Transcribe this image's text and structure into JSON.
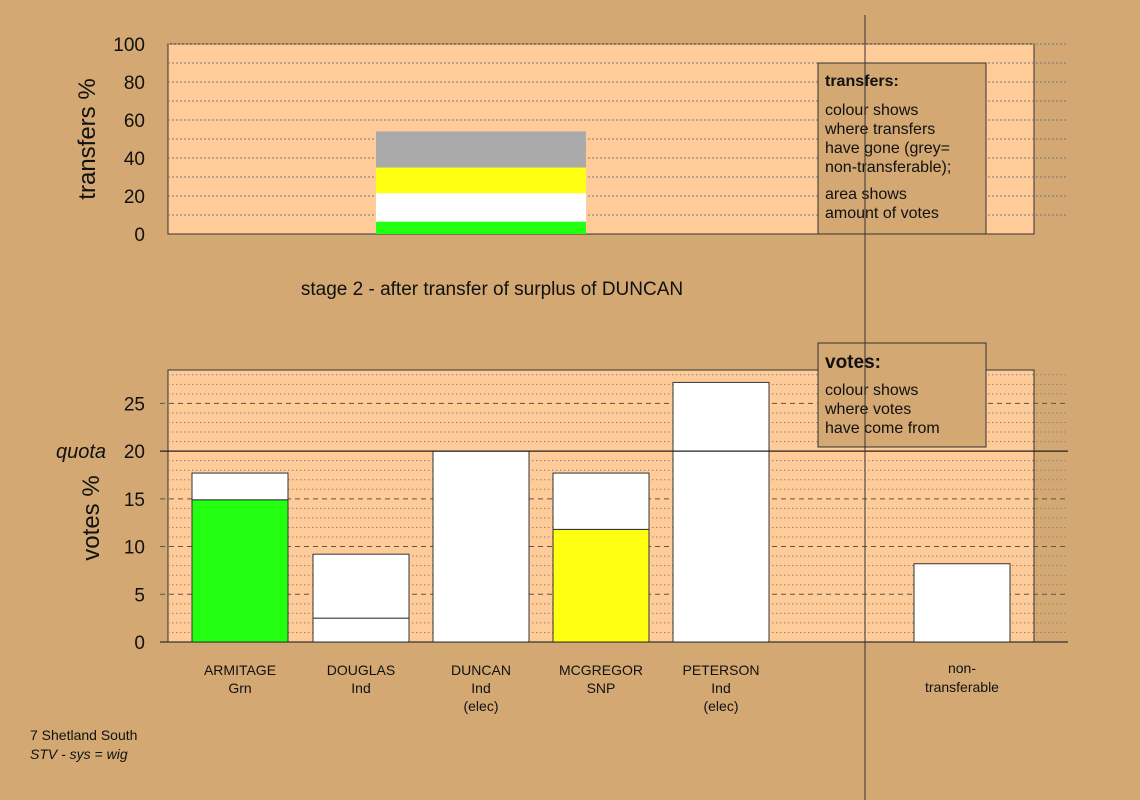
{
  "stage_caption": "stage 2 - after transfer of surplus of DUNCAN",
  "footer": {
    "constituency": "7 Shetland South",
    "system": "STV - sys = wig"
  },
  "colors": {
    "background": "#d4a872",
    "plot_area": "#ffcc99",
    "grn": "#22ff11",
    "snp": "#ffff11",
    "ind": "#ffffff",
    "non_transferable": "#aaaaaa"
  },
  "chart_data": [
    {
      "type": "bar",
      "ylabel": "transfers %",
      "ylim": [
        0,
        100
      ],
      "yticks": [
        0,
        20,
        40,
        60,
        80,
        100
      ],
      "stacked_bar": [
        {
          "party": "Grn",
          "from": 0,
          "to": 6.5,
          "color": "#22ff11"
        },
        {
          "party": "Ind",
          "from": 6.5,
          "to": 21.5,
          "color": "#ffffff"
        },
        {
          "party": "SNP",
          "from": 21.5,
          "to": 35,
          "color": "#ffff11"
        },
        {
          "party": "non-transferable",
          "from": 35,
          "to": 54,
          "color": "#aaaaaa"
        }
      ],
      "legend": {
        "title": "transfers:",
        "lines1": [
          "colour shows",
          "where transfers",
          "have gone (grey=",
          "non-transferable);"
        ],
        "lines2": [
          "area shows",
          "amount of votes"
        ]
      }
    },
    {
      "type": "bar",
      "ylabel": "votes %",
      "ylim": [
        0,
        28.5
      ],
      "yticks": [
        0,
        5,
        10,
        15,
        20,
        25
      ],
      "quota": 20,
      "quota_label": "quota",
      "categories": [
        {
          "name": "ARMITAGE",
          "party": "Grn",
          "status": ""
        },
        {
          "name": "DOUGLAS",
          "party": "Ind",
          "status": ""
        },
        {
          "name": "DUNCAN",
          "party": "Ind",
          "status": "(elec)"
        },
        {
          "name": "MCGREGOR",
          "party": "SNP",
          "status": ""
        },
        {
          "name": "PETERSON",
          "party": "Ind",
          "status": "(elec)"
        }
      ],
      "segments": [
        [
          {
            "value": 14.9,
            "color": "#22ff11"
          },
          {
            "value": 2.8,
            "color": "#ffffff"
          }
        ],
        [
          {
            "value": 2.5,
            "color": "#ffffff"
          },
          {
            "value": 6.7,
            "color": "#ffffff"
          }
        ],
        [
          {
            "value": 20.0,
            "color": "#ffffff"
          }
        ],
        [
          {
            "value": 11.8,
            "color": "#ffff11"
          },
          {
            "value": 5.9,
            "color": "#ffffff"
          }
        ],
        [
          {
            "value": 27.2,
            "color": "#ffffff"
          }
        ]
      ],
      "non_transferable": {
        "label_lines": [
          "non-",
          "transferable"
        ],
        "value": 8.2
      },
      "legend": {
        "title": "votes:",
        "lines": [
          "colour shows",
          "where votes",
          "have come from"
        ]
      }
    }
  ]
}
